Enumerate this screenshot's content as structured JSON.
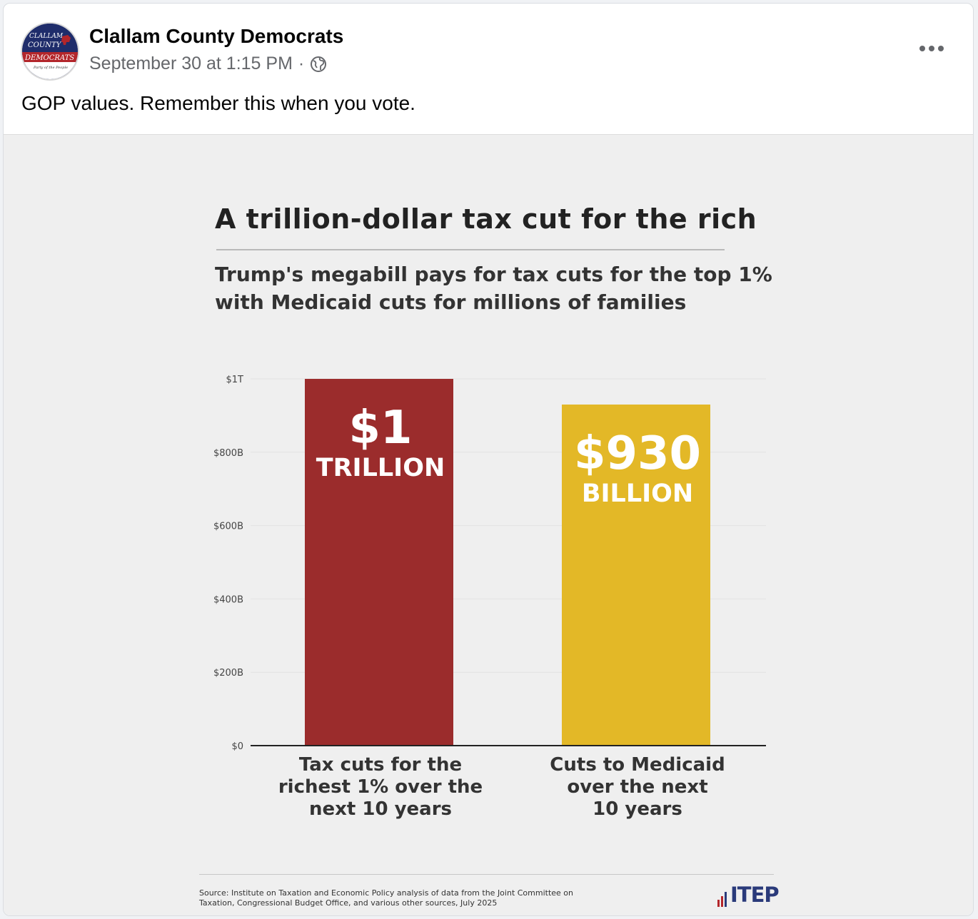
{
  "post": {
    "author": "Clallam County Democrats",
    "timestamp": "September 30 at 1:15 PM",
    "separator": "·",
    "audience_icon": "globe-icon",
    "more_icon": "more-horizontal-icon",
    "caption": "GOP values. Remember this when you vote.",
    "avatar": {
      "line1": "CLALLAM",
      "line2": "COUNTY",
      "line3": "DEMOCRATS",
      "line4": "Party of the People"
    }
  },
  "chart_data": {
    "type": "bar",
    "title": "A trillion-dollar tax cut for the rich",
    "subtitle_line1": "Trump's megabill pays for tax cuts for the top 1%",
    "subtitle_line2": "with Medicaid cuts for millions of families",
    "categories": [
      [
        "Tax cuts for the",
        "richest 1% over the",
        "next 10 years"
      ],
      [
        "Cuts to Medicaid",
        "over the next",
        "10 years"
      ]
    ],
    "values_billions": [
      1000,
      930
    ],
    "bar_labels": [
      {
        "big": "$1",
        "small": "TRILLION"
      },
      {
        "big": "$930",
        "small": "BILLION"
      }
    ],
    "colors": [
      "#9b2c2c",
      "#e3b827"
    ],
    "y_ticks": [
      {
        "value": 0,
        "label": "$0"
      },
      {
        "value": 200,
        "label": "$200B"
      },
      {
        "value": 400,
        "label": "$400B"
      },
      {
        "value": 600,
        "label": "$600B"
      },
      {
        "value": 800,
        "label": "$800B"
      },
      {
        "value": 1000,
        "label": "$1T"
      }
    ],
    "ylim": [
      0,
      1000
    ],
    "grid": true,
    "legend": "none",
    "source_line1": "Source: Institute on Taxation and Economic Policy analysis of data from the Joint Committee on",
    "source_line2": "Taxation, Congressional Budget Office, and various other sources, July 2025",
    "logo": "ITEP"
  }
}
